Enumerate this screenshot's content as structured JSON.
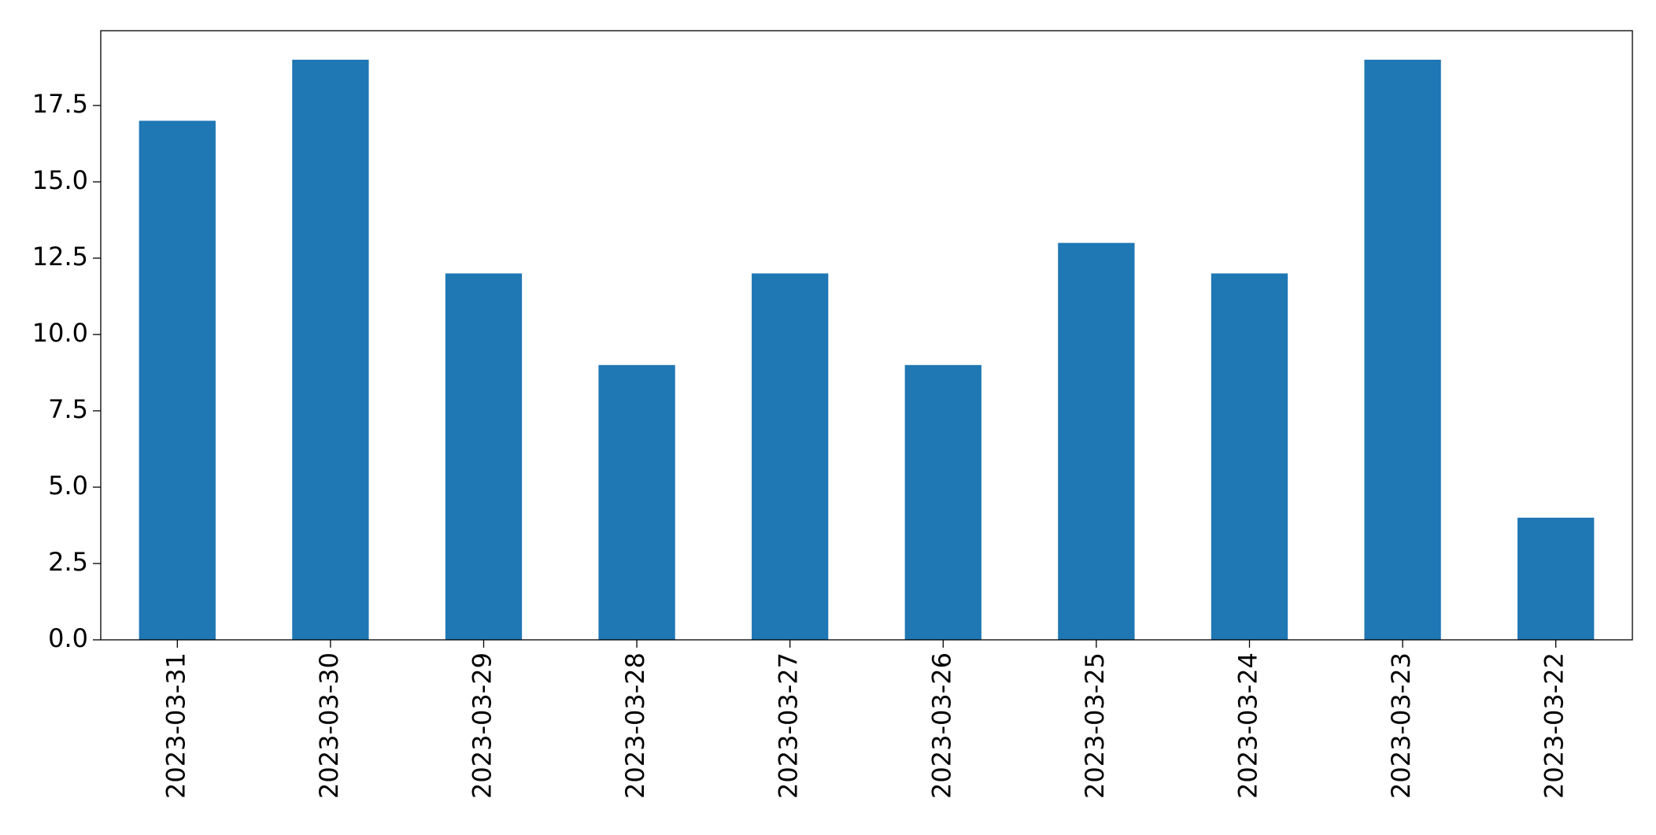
{
  "chart_data": {
    "type": "bar",
    "categories": [
      "2023-03-31",
      "2023-03-30",
      "2023-03-29",
      "2023-03-28",
      "2023-03-27",
      "2023-03-26",
      "2023-03-25",
      "2023-03-24",
      "2023-03-23",
      "2023-03-22"
    ],
    "values": [
      17,
      19,
      12,
      9,
      12,
      9,
      13,
      12,
      19,
      4
    ],
    "color": "#1f77b4",
    "ylim": [
      0,
      19.95
    ],
    "yticks": [
      {
        "value": 0,
        "label": "0.0"
      },
      2.5,
      {
        "value": 5,
        "label": "5.0"
      },
      7.5,
      {
        "value": 10,
        "label": "10.0"
      },
      12.5,
      {
        "value": 15,
        "label": "15.0"
      },
      17.5
    ],
    "grid": false
  }
}
